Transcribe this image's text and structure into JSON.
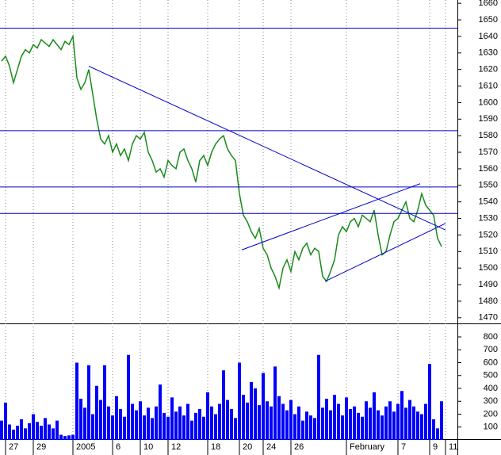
{
  "chart_data": [
    {
      "type": "line",
      "color": "#1a8a1a",
      "values": [
        1625,
        1628,
        1622,
        1612,
        1620,
        1628,
        1632,
        1630,
        1635,
        1633,
        1638,
        1636,
        1634,
        1638,
        1635,
        1632,
        1637,
        1635,
        1640,
        1615,
        1608,
        1612,
        1620,
        1605,
        1590,
        1578,
        1575,
        1580,
        1570,
        1575,
        1568,
        1572,
        1565,
        1575,
        1580,
        1578,
        1582,
        1570,
        1565,
        1558,
        1560,
        1555,
        1565,
        1562,
        1560,
        1570,
        1572,
        1565,
        1560,
        1552,
        1565,
        1568,
        1562,
        1570,
        1575,
        1578,
        1580,
        1572,
        1568,
        1565,
        1545,
        1532,
        1528,
        1522,
        1518,
        1524,
        1512,
        1508,
        1500,
        1495,
        1488,
        1500,
        1505,
        1498,
        1510,
        1505,
        1512,
        1515,
        1508,
        1512,
        1510,
        1495,
        1492,
        1498,
        1505,
        1520,
        1525,
        1522,
        1528,
        1530,
        1525,
        1532,
        1530,
        1528,
        1535,
        1520,
        1508,
        1510,
        1520,
        1528,
        1530,
        1535,
        1540,
        1530,
        1528,
        1535,
        1545,
        1538,
        1535,
        1532,
        1518,
        1513
      ],
      "xlim": [
        -0.4,
        115
      ],
      "xticks": [
        {
          "value": 1,
          "label": "27"
        },
        {
          "value": 8,
          "label": "29"
        },
        {
          "value": 18,
          "label": "2005"
        },
        {
          "value": 28,
          "label": "6"
        },
        {
          "value": 35,
          "label": "10"
        },
        {
          "value": 42,
          "label": "12"
        },
        {
          "value": 52,
          "label": "18"
        },
        {
          "value": 60,
          "label": "20"
        },
        {
          "value": 66,
          "label": "24"
        },
        {
          "value": 73,
          "label": "26"
        },
        {
          "value": 87,
          "label": "February"
        },
        {
          "value": 100,
          "label": "7"
        },
        {
          "value": 108,
          "label": "9"
        },
        {
          "value": 112,
          "label": "11"
        }
      ],
      "ylim": [
        1468,
        1662
      ],
      "yticks": [
        1470,
        1480,
        1490,
        1500,
        1510,
        1520,
        1530,
        1540,
        1550,
        1560,
        1570,
        1580,
        1590,
        1600,
        1610,
        1620,
        1630,
        1640,
        1650,
        1660
      ],
      "hlines": [
        1645,
        1583,
        1549,
        1533
      ],
      "lines": [
        {
          "x": [
            22,
            112
          ],
          "y": [
            1622,
            1523
          ]
        },
        {
          "x": [
            60.6,
            105.6
          ],
          "y": [
            1511,
            1551
          ]
        },
        {
          "x": [
            81.6,
            112
          ],
          "y": [
            1492,
            1527
          ]
        }
      ],
      "line_color": "#0000cc"
    },
    {
      "type": "bar",
      "color": "#0000ff",
      "values": [
        150,
        290,
        120,
        80,
        110,
        160,
        90,
        130,
        200,
        140,
        110,
        170,
        120,
        90,
        150,
        40,
        30,
        35,
        40,
        600,
        320,
        250,
        580,
        200,
        420,
        310,
        580,
        260,
        190,
        340,
        240,
        180,
        660,
        280,
        230,
        300,
        190,
        250,
        170,
        260,
        430,
        210,
        180,
        330,
        220,
        260,
        190,
        280,
        150,
        210,
        240,
        180,
        370,
        260,
        200,
        280,
        540,
        310,
        240,
        170,
        600,
        350,
        290,
        450,
        400,
        270,
        520,
        300,
        260,
        570,
        340,
        280,
        230,
        310,
        200,
        260,
        150,
        220,
        190,
        170,
        660,
        250,
        320,
        230,
        350,
        280,
        190,
        330,
        240,
        260,
        210,
        180,
        300,
        250,
        370,
        230,
        190,
        260,
        300,
        220,
        280,
        380,
        250,
        310,
        260,
        220,
        200,
        280,
        590,
        160,
        90,
        300
      ],
      "ylim": [
        0,
        880
      ],
      "yticks": [
        100,
        200,
        300,
        400,
        500,
        600,
        700,
        800
      ]
    }
  ]
}
